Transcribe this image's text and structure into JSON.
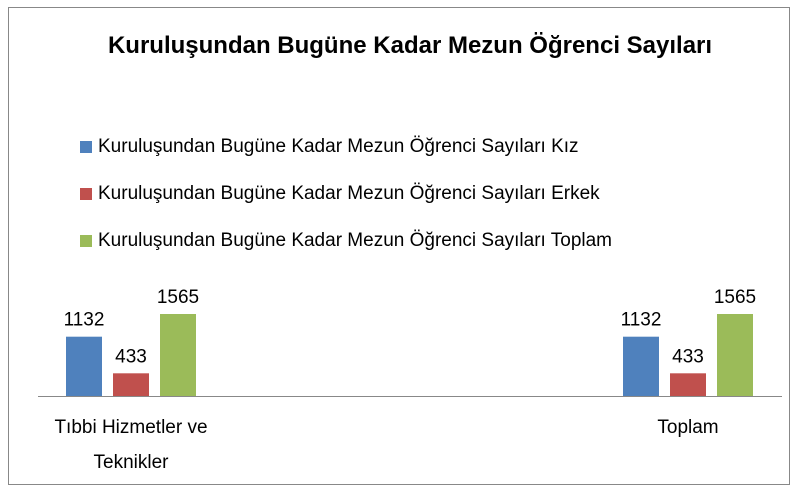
{
  "chart_data": {
    "type": "bar",
    "title": "Kuruluşundan Bugüne Kadar Mezun Öğrenci Sayıları",
    "categories": [
      "Tıbbi Hizmetler ve Teknikler",
      "Toplam"
    ],
    "series": [
      {
        "name": "Kuruluşundan Bugüne Kadar Mezun Öğrenci Sayıları Kız",
        "color": "#4f81bd",
        "values": [
          1132,
          1132
        ]
      },
      {
        "name": "Kuruluşundan Bugüne Kadar Mezun Öğrenci Sayıları Erkek",
        "color": "#c0504d",
        "values": [
          433,
          433
        ]
      },
      {
        "name": "Kuruluşundan Bugüne Kadar Mezun Öğrenci Sayıları Toplam",
        "color": "#9bbb59",
        "values": [
          1565,
          1565
        ]
      }
    ],
    "legend": "top"
  }
}
